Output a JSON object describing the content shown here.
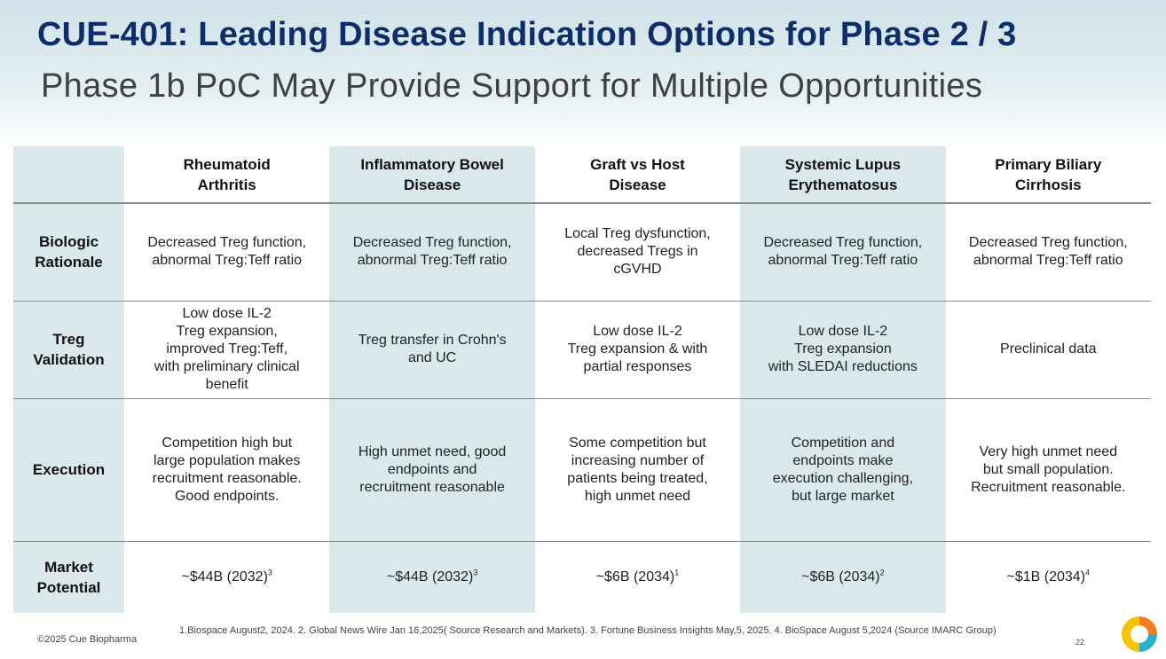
{
  "title": "CUE-401: Leading Disease Indication Options for Phase 2 / 3",
  "subtitle": "Phase 1b PoC May Provide Support for Multiple Opportunities",
  "columns": [
    {
      "line1": "Rheumatoid",
      "line2": "Arthritis"
    },
    {
      "line1": "Inflammatory Bowel",
      "line2": "Disease"
    },
    {
      "line1": "Graft vs Host",
      "line2": "Disease"
    },
    {
      "line1": "Systemic Lupus",
      "line2": "Erythematosus"
    },
    {
      "line1": "Primary Biliary",
      "line2": "Cirrhosis"
    }
  ],
  "rows": {
    "biologic": {
      "label1": "Biologic",
      "label2": "Rationale",
      "cells": [
        [
          "Decreased Treg function,",
          "abnormal Treg:Teff ratio"
        ],
        [
          "Decreased Treg function,",
          "abnormal Treg:Teff ratio"
        ],
        [
          "Local Treg dysfunction,",
          "decreased Tregs in",
          "cGVHD"
        ],
        [
          "Decreased Treg function,",
          "abnormal Treg:Teff ratio"
        ],
        [
          "Decreased Treg function,",
          "abnormal Treg:Teff ratio"
        ]
      ]
    },
    "treg": {
      "label1": "Treg",
      "label2": "Validation",
      "cells": [
        [
          "Low dose IL-2",
          "Treg expansion,",
          "improved Treg:Teff,",
          "with preliminary clinical",
          "benefit"
        ],
        [
          "Treg transfer in Crohn's",
          "and UC"
        ],
        [
          "Low dose IL-2",
          "Treg expansion & with",
          "partial responses"
        ],
        [
          "Low dose IL-2",
          "Treg expansion",
          "with SLEDAI reductions"
        ],
        [
          "Preclinical data"
        ]
      ]
    },
    "execution": {
      "label1": "Execution",
      "cells": [
        [
          "Competition high but",
          "large population makes",
          "recruitment reasonable.",
          "Good endpoints."
        ],
        [
          "High unmet need, good",
          "endpoints and",
          "recruitment reasonable"
        ],
        [
          "Some competition but",
          "increasing number of",
          "patients being treated,",
          "high unmet need"
        ],
        [
          "Competition and",
          "endpoints make",
          "execution challenging,",
          "but large market"
        ],
        [
          "Very high unmet need",
          "but small population.",
          "Recruitment reasonable."
        ]
      ]
    },
    "market": {
      "label1": "Market",
      "label2": "Potential",
      "cells": [
        {
          "text": "~$44B (2032)",
          "sup": "3"
        },
        {
          "text": "~$44B (2032)",
          "sup": "3"
        },
        {
          "text": "~$6B (2034)",
          "sup": "1"
        },
        {
          "text": "~$6B (2034)",
          "sup": "2"
        },
        {
          "text": "~$1B (2034)",
          "sup": "4"
        }
      ]
    }
  },
  "footer": {
    "copyright": "©2025 Cue Biopharma",
    "footnotes": "1.Biospace August2, 2024.  2. Global News Wire Jan 16,2025( Source Research and Markets).  3. Fortune Business Insights May,5, 2025.  4. BioSpace August 5,2024 (Source IMARC Group)",
    "page_number": "22"
  },
  "colors": {
    "title": "#0d2d6b",
    "shade": "#dae8ec",
    "logo_orange": "#f47b20",
    "logo_yellow": "#f5c400",
    "logo_teal": "#2bb0c9"
  }
}
